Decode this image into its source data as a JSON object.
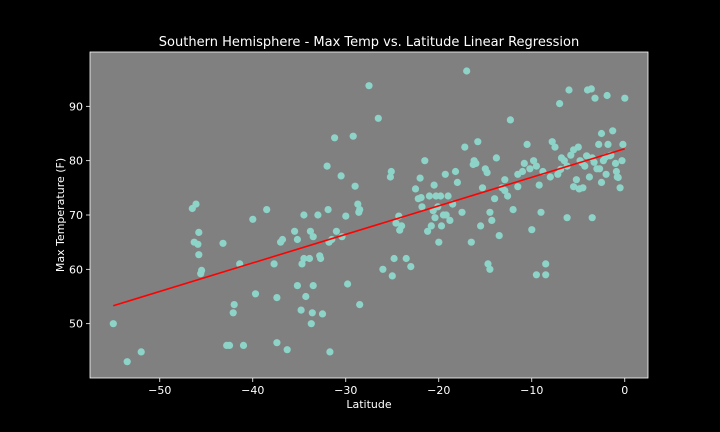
{
  "chart_data": {
    "type": "scatter",
    "title": "Southern Hemisphere - Max Temp vs. Latitude Linear Regression",
    "xlabel": "Latitude",
    "ylabel": "Max Temperature (F)",
    "xlim": [
      -57.5,
      2.5
    ],
    "ylim": [
      40,
      100
    ],
    "xticks": [
      -50,
      -40,
      -30,
      -20,
      -10,
      0
    ],
    "yticks": [
      50,
      60,
      70,
      80,
      90
    ],
    "grid": false,
    "colors": {
      "figure_background": "#000000",
      "axes_background": "#808080",
      "points": "#8dd3c7",
      "regression_line": "#ff0000",
      "text": "#ffffff"
    },
    "regression_line": {
      "x": [
        -55.0,
        0.0
      ],
      "y": [
        53.3,
        82.2
      ]
    },
    "points": [
      [
        -55.0,
        50.0
      ],
      [
        -53.5,
        43.0
      ],
      [
        -52.0,
        44.8
      ],
      [
        -46.5,
        71.2
      ],
      [
        -46.1,
        72.0
      ],
      [
        -46.3,
        65.0
      ],
      [
        -45.8,
        66.8
      ],
      [
        -45.9,
        64.6
      ],
      [
        -45.5,
        59.8
      ],
      [
        -45.6,
        59.2
      ],
      [
        -45.8,
        62.7
      ],
      [
        -43.2,
        64.8
      ],
      [
        -42.8,
        46.0
      ],
      [
        -42.5,
        46.0
      ],
      [
        -42.0,
        53.5
      ],
      [
        -42.1,
        52.0
      ],
      [
        -41.4,
        61.0
      ],
      [
        -41.0,
        46.0
      ],
      [
        -40.0,
        69.2
      ],
      [
        -39.7,
        55.5
      ],
      [
        -38.5,
        71.0
      ],
      [
        -37.7,
        61.0
      ],
      [
        -37.4,
        54.8
      ],
      [
        -37.4,
        46.5
      ],
      [
        -36.8,
        65.5
      ],
      [
        -36.3,
        45.2
      ],
      [
        -35.5,
        67.0
      ],
      [
        -35.2,
        57.0
      ],
      [
        -35.2,
        65.5
      ],
      [
        -34.8,
        52.5
      ],
      [
        -34.7,
        61.0
      ],
      [
        -34.5,
        62.0
      ],
      [
        -34.5,
        70.0
      ],
      [
        -34.3,
        55.0
      ],
      [
        -33.9,
        62.0
      ],
      [
        -33.8,
        67.0
      ],
      [
        -33.7,
        50.0
      ],
      [
        -33.6,
        52.0
      ],
      [
        -33.5,
        57.0
      ],
      [
        -33.5,
        66.0
      ],
      [
        -33.0,
        70.0
      ],
      [
        -32.8,
        62.5
      ],
      [
        -32.7,
        62.0
      ],
      [
        -32.5,
        51.8
      ],
      [
        -32.0,
        79.0
      ],
      [
        -31.9,
        71.0
      ],
      [
        -31.8,
        65.0
      ],
      [
        -31.7,
        44.8
      ],
      [
        -31.5,
        65.5
      ],
      [
        -31.2,
        84.2
      ],
      [
        -31.0,
        67.0
      ],
      [
        -30.5,
        77.2
      ],
      [
        -30.4,
        66.0
      ],
      [
        -30.0,
        69.8
      ],
      [
        -29.8,
        57.3
      ],
      [
        -29.2,
        84.5
      ],
      [
        -29.0,
        75.3
      ],
      [
        -28.7,
        72.0
      ],
      [
        -28.6,
        70.5
      ],
      [
        -28.5,
        53.5
      ],
      [
        -28.5,
        71.0
      ],
      [
        -27.5,
        93.8
      ],
      [
        -26.5,
        87.8
      ],
      [
        -26.0,
        60.0
      ],
      [
        -25.2,
        77.0
      ],
      [
        -25.0,
        58.8
      ],
      [
        -24.8,
        62.0
      ],
      [
        -24.6,
        68.5
      ],
      [
        -24.3,
        69.8
      ],
      [
        -24.2,
        67.2
      ],
      [
        -24.0,
        68.0
      ],
      [
        -23.5,
        62.0
      ],
      [
        -23.0,
        60.5
      ],
      [
        -22.5,
        74.8
      ],
      [
        -22.0,
        76.8
      ],
      [
        -22.2,
        73.0
      ],
      [
        -21.8,
        71.5
      ],
      [
        -21.5,
        80.0
      ],
      [
        -21.2,
        67.0
      ],
      [
        -21.0,
        73.5
      ],
      [
        -20.8,
        68.0
      ],
      [
        -20.5,
        75.5
      ],
      [
        -20.4,
        69.5
      ],
      [
        -20.3,
        73.5
      ],
      [
        -20.1,
        71.5
      ],
      [
        -20.0,
        65.0
      ],
      [
        -19.8,
        73.5
      ],
      [
        -19.7,
        68.0
      ],
      [
        -19.5,
        70.0
      ],
      [
        -19.3,
        77.5
      ],
      [
        -19.2,
        70.0
      ],
      [
        -19.0,
        73.5
      ],
      [
        -18.8,
        69.0
      ],
      [
        -18.5,
        72.0
      ],
      [
        -18.2,
        78.0
      ],
      [
        -18.0,
        76.0
      ],
      [
        -17.5,
        70.5
      ],
      [
        -17.2,
        82.5
      ],
      [
        -17.0,
        96.5
      ],
      [
        -16.5,
        65.0
      ],
      [
        -16.2,
        80.0
      ],
      [
        -16.0,
        79.5
      ],
      [
        -15.8,
        83.5
      ],
      [
        -15.5,
        68.0
      ],
      [
        -15.0,
        78.5
      ],
      [
        -14.7,
        61.0
      ],
      [
        -14.5,
        70.5
      ],
      [
        -14.3,
        69.0
      ],
      [
        -14.0,
        73.0
      ],
      [
        -13.8,
        80.5
      ],
      [
        -13.5,
        66.2
      ],
      [
        -13.2,
        75.0
      ],
      [
        -12.9,
        76.5
      ],
      [
        -12.6,
        73.5
      ],
      [
        -12.3,
        87.5
      ],
      [
        -12.0,
        71.0
      ],
      [
        -11.5,
        75.2
      ],
      [
        -11.0,
        78.0
      ],
      [
        -10.8,
        79.5
      ],
      [
        -10.5,
        83.0
      ],
      [
        -10.2,
        78.5
      ],
      [
        -10.0,
        67.3
      ],
      [
        -9.8,
        80.0
      ],
      [
        -9.5,
        79.0
      ],
      [
        -9.2,
        75.5
      ],
      [
        -9.0,
        70.5
      ],
      [
        -8.8,
        78.0
      ],
      [
        -8.5,
        61.0
      ],
      [
        -8.0,
        77.0
      ],
      [
        -7.8,
        83.5
      ],
      [
        -7.5,
        82.5
      ],
      [
        -7.2,
        77.5
      ],
      [
        -7.0,
        90.5
      ],
      [
        -6.8,
        80.5
      ],
      [
        -6.5,
        80.0
      ],
      [
        -6.2,
        79.0
      ],
      [
        -6.0,
        93.0
      ],
      [
        -5.8,
        81.0
      ],
      [
        -5.5,
        82.0
      ],
      [
        -5.2,
        76.5
      ],
      [
        -5.0,
        82.5
      ],
      [
        -4.8,
        80.0
      ],
      [
        -4.5,
        75.0
      ],
      [
        -4.3,
        79.0
      ],
      [
        -4.0,
        93.0
      ],
      [
        -3.8,
        77.0
      ],
      [
        -3.5,
        80.5
      ],
      [
        -3.2,
        91.5
      ],
      [
        -3.0,
        78.5
      ],
      [
        -2.8,
        83.0
      ],
      [
        -2.5,
        85.0
      ],
      [
        -2.3,
        80.0
      ],
      [
        -2.0,
        77.5
      ],
      [
        -1.8,
        83.0
      ],
      [
        -1.5,
        81.0
      ],
      [
        -1.3,
        85.5
      ],
      [
        -1.0,
        79.5
      ],
      [
        -0.8,
        77.0
      ],
      [
        -0.5,
        75.0
      ],
      [
        -0.3,
        80.0
      ],
      [
        -0.2,
        83.0
      ],
      [
        0.0,
        91.5
      ],
      [
        -9.5,
        59.0
      ],
      [
        -8.5,
        59.0
      ],
      [
        -6.2,
        69.5
      ],
      [
        -3.5,
        69.5
      ],
      [
        -2.5,
        76.0
      ],
      [
        -1.9,
        92.0
      ],
      [
        -3.6,
        93.2
      ],
      [
        -4.6,
        79.6
      ],
      [
        -2.7,
        78.5
      ],
      [
        -1.6,
        80.9
      ],
      [
        -0.9,
        78.0
      ],
      [
        -4.9,
        74.8
      ],
      [
        -5.5,
        75.2
      ],
      [
        -6.9,
        78.4
      ],
      [
        -3.3,
        79.7
      ],
      [
        -2.1,
        80.6
      ],
      [
        -0.7,
        76.9
      ],
      [
        -4.1,
        80.9
      ],
      [
        -11.5,
        77.5
      ],
      [
        -14.8,
        77.8
      ],
      [
        -15.3,
        75.0
      ],
      [
        -12.9,
        74.5
      ],
      [
        -21.9,
        73.2
      ],
      [
        -20.6,
        70.8
      ],
      [
        -16.3,
        79.3
      ],
      [
        -14.5,
        60.0
      ],
      [
        -25.1,
        78.0
      ],
      [
        -37.0,
        65.0
      ]
    ]
  }
}
